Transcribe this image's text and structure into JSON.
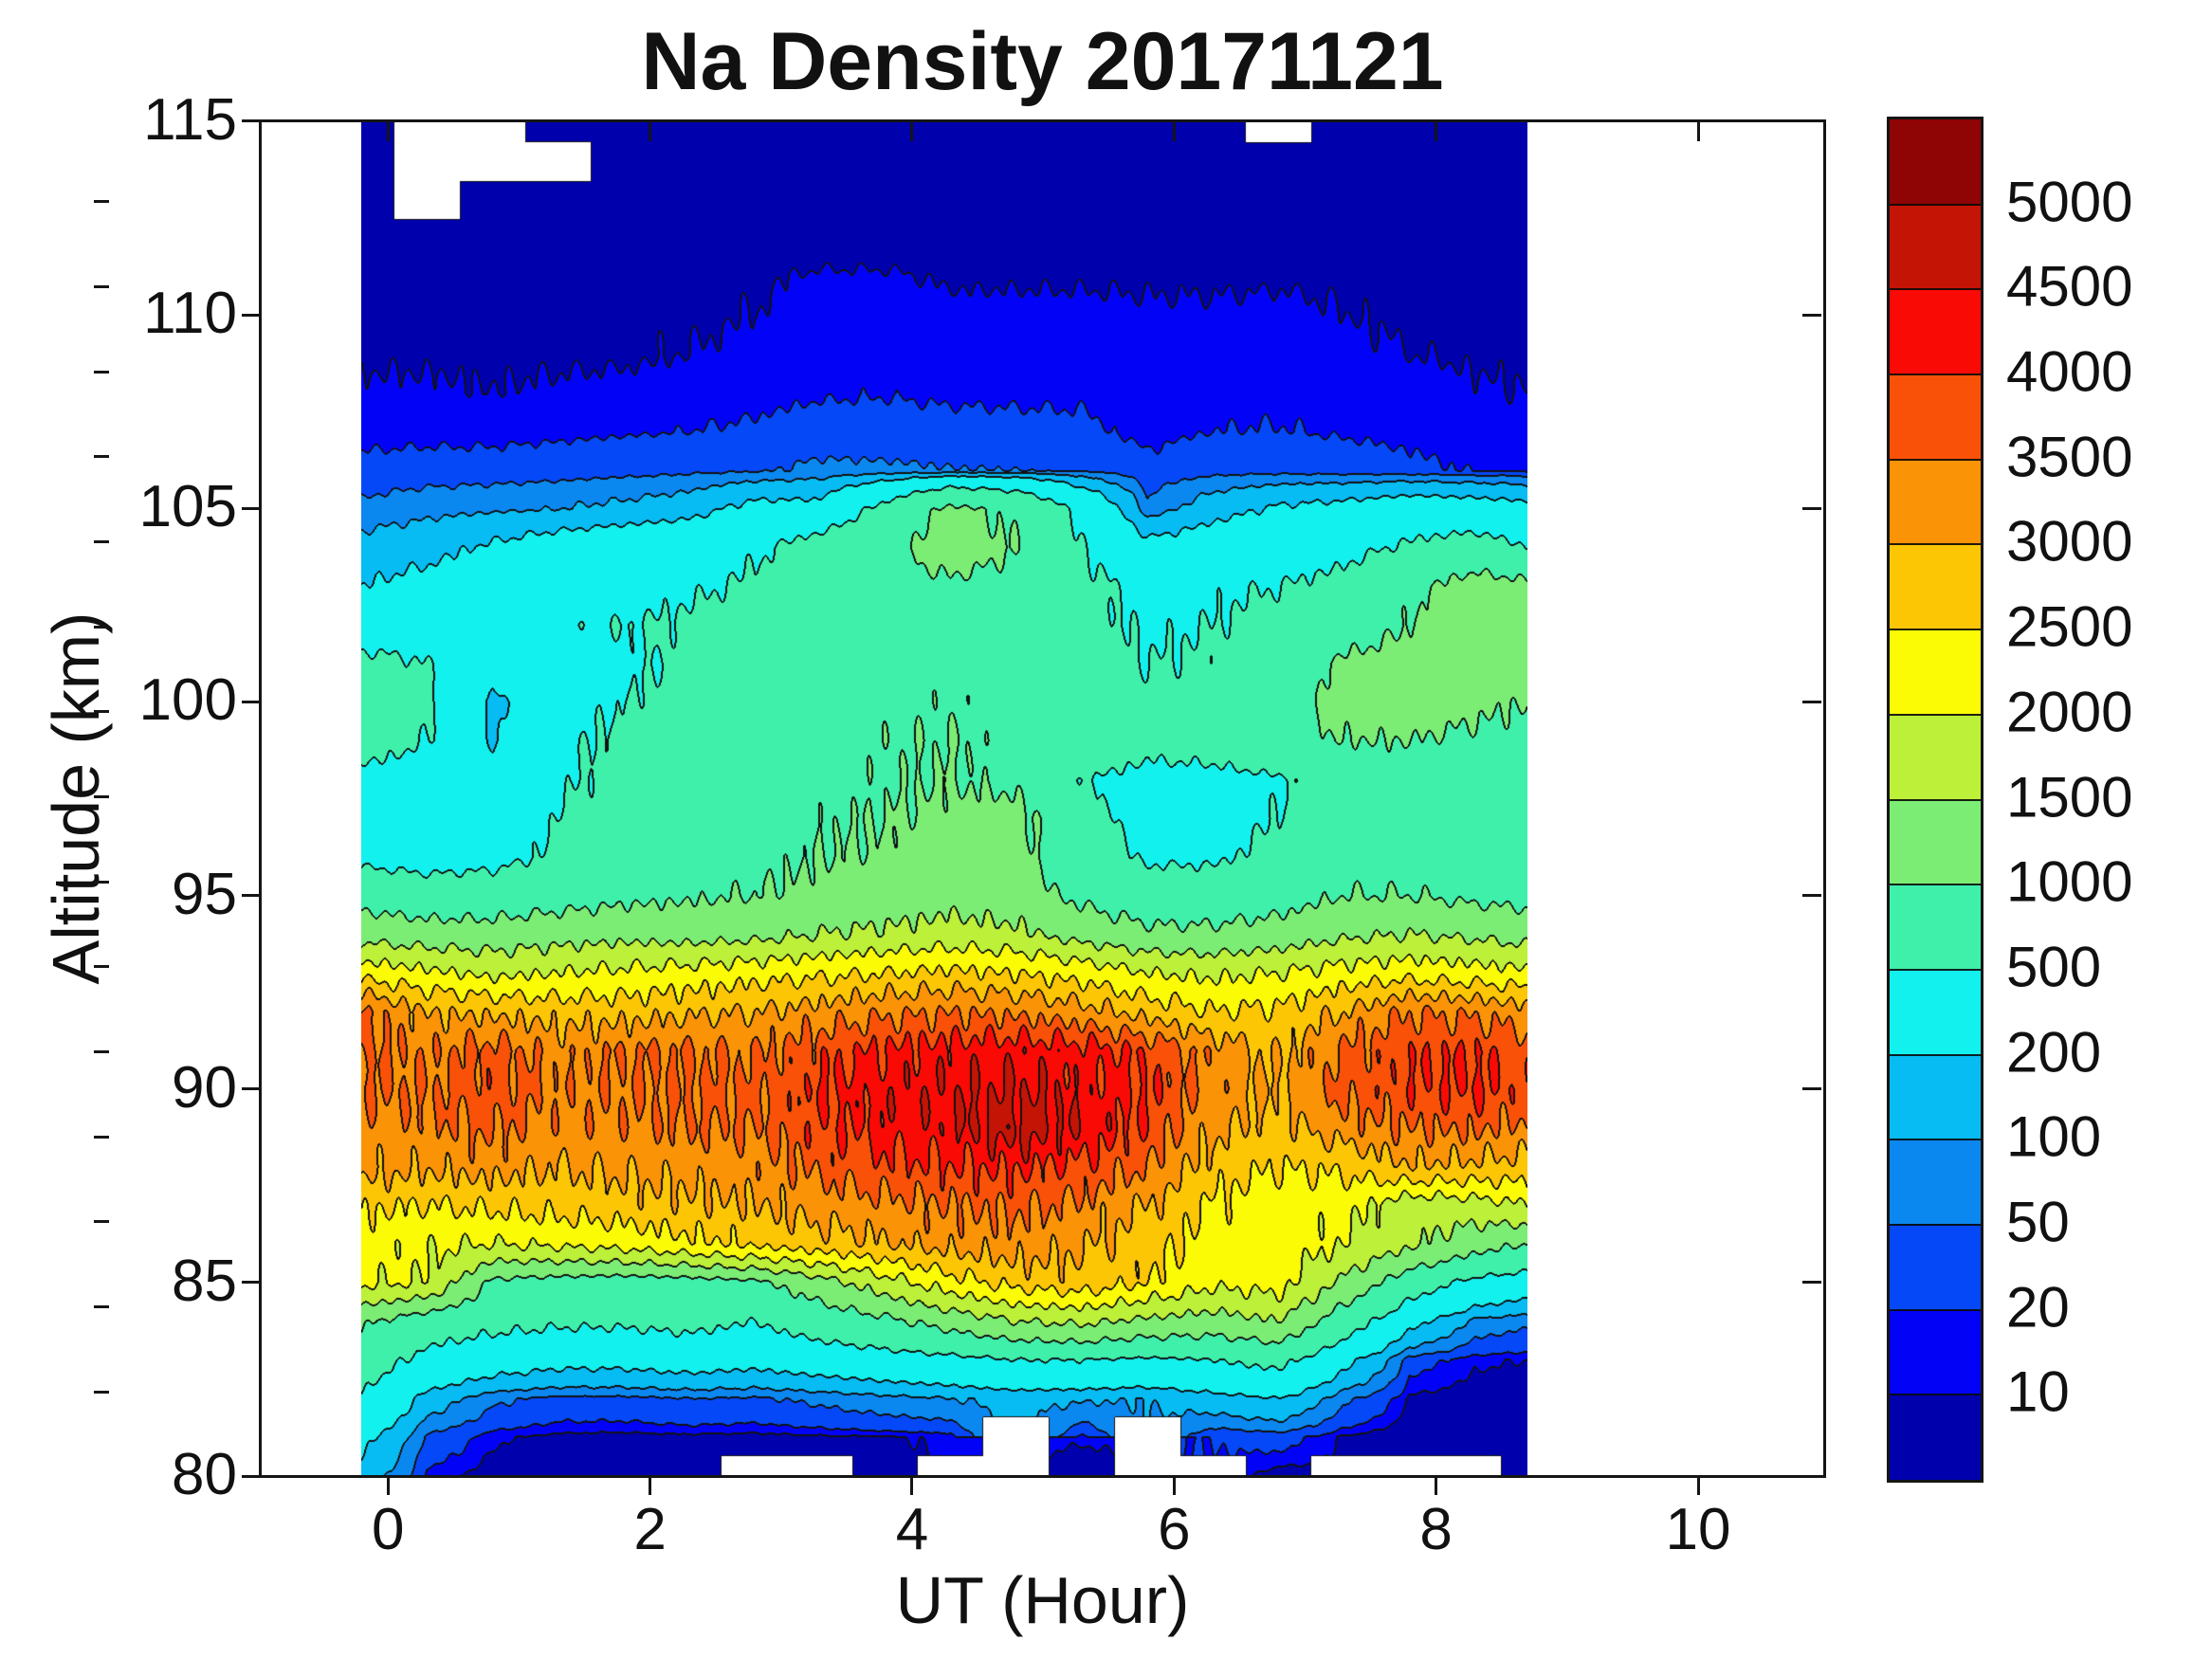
{
  "title": "Na Density 20171121",
  "x_axis": {
    "label": "UT (Hour)",
    "ticks": [
      "0",
      "2",
      "4",
      "6",
      "8",
      "10"
    ],
    "tick_values": [
      0,
      2,
      4,
      6,
      8,
      10
    ],
    "range": [
      -1,
      11
    ]
  },
  "y_axis": {
    "label": "Altitude (km)",
    "ticks": [
      "80",
      "85",
      "90",
      "95",
      "100",
      "105",
      "110",
      "115"
    ],
    "tick_values": [
      80,
      85,
      90,
      95,
      100,
      105,
      110,
      115
    ],
    "range": [
      80,
      115
    ]
  },
  "colorbar": {
    "tick_labels_top_to_bottom": [
      "5000",
      "4500",
      "4000",
      "3500",
      "3000",
      "2500",
      "2000",
      "1500",
      "1000",
      "500",
      "200",
      "100",
      "50",
      "20",
      "10"
    ],
    "band_colors_low_to_high": [
      "#0000AD",
      "#0203F6",
      "#0548F8",
      "#0B87F0",
      "#06BCF2",
      "#12F1EE",
      "#3FF0AB",
      "#7CED74",
      "#BDF039",
      "#FBFB05",
      "#FCC605",
      "#FB9306",
      "#F95108",
      "#FA0A05",
      "#C41406",
      "#8F0404"
    ],
    "outline_color": "#151515"
  },
  "chart_data": {
    "type": "contour",
    "title": "Na Density 20171121",
    "xlabel": "UT (Hour)",
    "ylabel": "Altitude (km)",
    "x_axis_range": [
      -1,
      11
    ],
    "y_axis_range": [
      80,
      115
    ],
    "grid": false,
    "legend_position": "right-colorbar",
    "levels": [
      10,
      20,
      50,
      100,
      200,
      500,
      1000,
      1500,
      2000,
      2500,
      3000,
      3500,
      4000,
      4500,
      5000
    ],
    "contour_line_color": "#141414",
    "no_data_color": "#FFFFFF",
    "x": [
      -0.2,
      0.3,
      0.8,
      1.3,
      1.8,
      2.3,
      2.8,
      3.3,
      3.8,
      4.3,
      4.8,
      5.3,
      5.8,
      6.3,
      6.8,
      7.3,
      7.8,
      8.3,
      8.7
    ],
    "altitude_km": [
      115,
      114,
      113,
      112,
      111,
      110,
      109,
      108,
      107,
      106,
      105,
      104,
      103,
      102,
      101,
      100,
      99,
      98,
      97,
      96,
      95,
      94,
      93,
      92,
      91,
      90,
      89,
      88,
      87,
      86,
      85,
      84,
      83,
      82,
      81,
      80
    ],
    "values": [
      [
        5,
        null,
        null,
        5,
        5,
        5,
        5,
        5,
        5,
        5,
        5,
        5,
        5,
        5,
        null,
        5,
        5,
        5,
        5
      ],
      [
        6,
        null,
        null,
        null,
        5,
        5,
        5,
        5,
        5,
        5,
        5,
        5,
        5,
        6,
        6,
        5,
        5,
        5,
        5
      ],
      [
        7,
        null,
        6,
        6,
        5,
        5,
        5,
        5,
        5,
        6,
        6,
        6,
        6,
        6,
        7,
        6,
        5,
        5,
        5
      ],
      [
        8,
        7,
        7,
        7,
        6,
        6,
        6,
        6,
        6,
        7,
        7,
        7,
        7,
        7,
        8,
        8,
        7,
        6,
        6
      ],
      [
        9,
        8,
        8,
        8,
        8,
        8,
        9,
        11,
        11,
        9,
        9,
        9,
        9,
        9,
        9,
        9,
        8,
        7,
        7
      ],
      [
        8,
        9,
        9,
        9,
        9,
        9,
        10,
        13,
        14,
        12,
        12,
        12,
        11,
        11,
        12,
        10,
        9,
        8,
        8
      ],
      [
        9,
        9,
        9,
        9,
        9,
        10,
        12,
        16,
        17,
        15,
        15,
        15,
        14,
        13,
        14,
        12,
        10,
        9,
        9
      ],
      [
        11,
        11,
        10,
        11,
        12,
        13,
        15,
        18,
        19,
        17,
        17,
        17,
        15,
        15,
        16,
        14,
        13,
        11,
        10
      ],
      [
        15,
        15,
        15,
        16,
        18,
        20,
        23,
        28,
        28,
        26,
        25,
        24,
        15,
        20,
        21,
        18,
        16,
        14,
        12
      ],
      [
        25,
        28,
        28,
        32,
        36,
        40,
        45,
        60,
        58,
        52,
        50,
        45,
        25,
        35,
        35,
        30,
        24,
        19,
        15
      ],
      [
        60,
        80,
        90,
        100,
        120,
        150,
        250,
        250,
        600,
        1100,
        900,
        400,
        60,
        150,
        220,
        250,
        300,
        280,
        250
      ],
      [
        130,
        160,
        220,
        280,
        320,
        350,
        450,
        650,
        850,
        1300,
        1000,
        500,
        250,
        300,
        350,
        400,
        550,
        650,
        500
      ],
      [
        200,
        250,
        300,
        350,
        400,
        450,
        550,
        700,
        800,
        900,
        800,
        600,
        400,
        450,
        500,
        600,
        900,
        1200,
        1100
      ],
      [
        300,
        350,
        400,
        450,
        500,
        550,
        650,
        750,
        800,
        850,
        750,
        600,
        450,
        500,
        600,
        700,
        1000,
        1300,
        1200
      ],
      [
        600,
        500,
        300,
        350,
        450,
        550,
        650,
        800,
        850,
        900,
        800,
        650,
        500,
        550,
        700,
        1100,
        1200,
        1250,
        1150
      ],
      [
        700,
        550,
        150,
        400,
        500,
        600,
        700,
        850,
        900,
        950,
        850,
        700,
        550,
        600,
        800,
        1200,
        1300,
        1100,
        1000
      ],
      [
        650,
        500,
        180,
        450,
        550,
        650,
        750,
        900,
        950,
        1000,
        900,
        750,
        600,
        650,
        850,
        1000,
        1000,
        900,
        850
      ],
      [
        400,
        350,
        300,
        450,
        600,
        700,
        800,
        900,
        950,
        1000,
        900,
        500,
        400,
        400,
        450,
        700,
        800,
        750,
        700
      ],
      [
        350,
        300,
        350,
        500,
        650,
        750,
        850,
        950,
        1000,
        1100,
        1150,
        600,
        380,
        380,
        500,
        700,
        700,
        650,
        600
      ],
      [
        400,
        350,
        400,
        550,
        700,
        800,
        900,
        1000,
        1050,
        1200,
        1100,
        700,
        450,
        450,
        600,
        800,
        800,
        750,
        700
      ],
      [
        800,
        700,
        700,
        800,
        900,
        950,
        1000,
        1100,
        1200,
        1300,
        1200,
        900,
        700,
        700,
        800,
        1000,
        1000,
        900,
        850
      ],
      [
        1300,
        1200,
        1200,
        1300,
        1350,
        1300,
        1350,
        1500,
        1600,
        1700,
        1600,
        1300,
        1100,
        1100,
        1200,
        1400,
        1500,
        1400,
        1300
      ],
      [
        2300,
        2100,
        1900,
        2000,
        2100,
        2200,
        2300,
        2400,
        2500,
        2600,
        2500,
        2300,
        2000,
        1900,
        2000,
        2200,
        2300,
        2200,
        2100
      ],
      [
        3600,
        3000,
        2900,
        2800,
        2800,
        2900,
        3000,
        3200,
        3400,
        3500,
        3400,
        3200,
        2800,
        2500,
        2600,
        3000,
        3500,
        3400,
        3200
      ],
      [
        3600,
        3400,
        3700,
        3300,
        3500,
        3550,
        3500,
        3800,
        4100,
        4200,
        4300,
        4200,
        3900,
        3300,
        2900,
        3600,
        3900,
        4000,
        3700
      ],
      [
        3600,
        3500,
        3800,
        3400,
        3500,
        3600,
        3600,
        4000,
        4300,
        4400,
        4500,
        4300,
        4000,
        3300,
        3000,
        3700,
        3900,
        4100,
        3800
      ],
      [
        3300,
        3400,
        3600,
        3300,
        3400,
        3500,
        3500,
        3900,
        4200,
        4400,
        4800,
        4400,
        3900,
        3100,
        2800,
        3300,
        3500,
        3600,
        3400
      ],
      [
        3200,
        3100,
        3200,
        3000,
        3100,
        3200,
        3300,
        3600,
        3900,
        4000,
        4100,
        3900,
        3500,
        2800,
        2500,
        2600,
        3000,
        2900,
        2800
      ],
      [
        2600,
        2500,
        2600,
        2700,
        2800,
        2900,
        3000,
        3200,
        3400,
        3500,
        3600,
        3400,
        3000,
        2400,
        2200,
        2200,
        1700,
        1800,
        2000
      ],
      [
        2200,
        2100,
        2000,
        2100,
        2200,
        2400,
        2600,
        2800,
        3000,
        3200,
        3300,
        3100,
        2700,
        2300,
        2300,
        2000,
        1600,
        1200,
        1000
      ],
      [
        2100,
        2000,
        900,
        800,
        750,
        800,
        900,
        1300,
        1800,
        2300,
        2700,
        2800,
        2500,
        2100,
        2200,
        1400,
        700,
        400,
        300
      ],
      [
        1100,
        700,
        600,
        550,
        550,
        600,
        500,
        700,
        900,
        1200,
        1500,
        1600,
        1400,
        1300,
        1500,
        700,
        250,
        80,
        60
      ],
      [
        700,
        400,
        300,
        250,
        250,
        280,
        250,
        300,
        350,
        400,
        500,
        500,
        450,
        500,
        600,
        250,
        30,
        12,
        10
      ],
      [
        450,
        150,
        60,
        40,
        40,
        50,
        45,
        60,
        80,
        100,
        120,
        110,
        100,
        150,
        200,
        60,
        8,
        5,
        4
      ],
      [
        250,
        40,
        12,
        7,
        6,
        7,
        6,
        8,
        9,
        12,
        null,
        12,
        null,
        20,
        30,
        8,
        3,
        2,
        2
      ],
      [
        150,
        15,
        5,
        3,
        2,
        3,
        null,
        null,
        3,
        null,
        null,
        3,
        null,
        null,
        4,
        null,
        null,
        null,
        3
      ]
    ]
  }
}
